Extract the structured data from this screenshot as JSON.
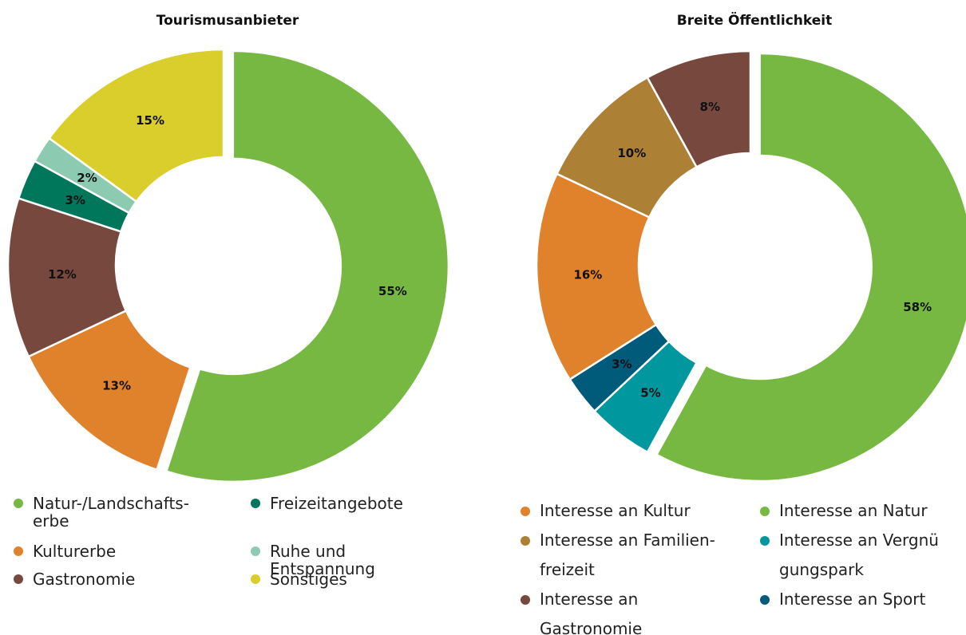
{
  "chart_data": [
    {
      "type": "pie",
      "title": "Tourismusanbieter",
      "categories": [
        "Natur-/Landschafts-\nerbe",
        "Kulturerbe",
        "Gastronomie",
        "Freizeitangebote",
        "Ruhe und\nEntspannung",
        "Sonstiges"
      ],
      "values": [
        55,
        13,
        12,
        3,
        2,
        15
      ],
      "value_labels": [
        "55%",
        "13%",
        "12%",
        "3%",
        "2%",
        "15%"
      ],
      "colors": [
        "#77b843",
        "#e0812b",
        "#77483d",
        "#00775a",
        "#8ccbb2",
        "#dace2c"
      ]
    },
    {
      "type": "pie",
      "title": "Breite Öffentlichkeit",
      "categories": [
        "Interesse an Natur",
        "Interesse an Vergnü\ngungspark",
        "Interesse an Sport",
        "Interesse an Kultur",
        "Interesse an Familien-\nfreizeit",
        "Interesse an\nGastronomie"
      ],
      "values": [
        58,
        5,
        3,
        16,
        10,
        8
      ],
      "value_labels": [
        "58%",
        "5%",
        "3%",
        "16%",
        "10%",
        "8%"
      ],
      "colors": [
        "#77b843",
        "#00989e",
        "#005a7a",
        "#e0812b",
        "#ad8135",
        "#77483d"
      ]
    }
  ]
}
